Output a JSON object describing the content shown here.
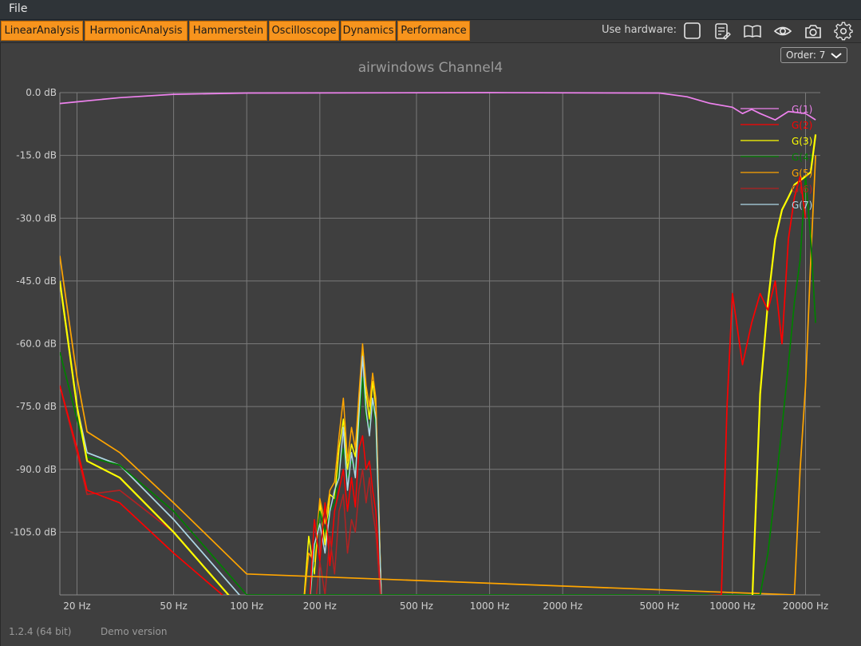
{
  "menu": {
    "file": "File"
  },
  "tabs": [
    {
      "label": "LinearAnalysis"
    },
    {
      "label": "HarmonicAnalysis"
    },
    {
      "label": "Hammerstein"
    },
    {
      "label": "Oscilloscope"
    },
    {
      "label": "Dynamics"
    },
    {
      "label": "Performance"
    }
  ],
  "toolbar": {
    "hardware_label": "Use hardware:",
    "icons": [
      "checkbox-icon",
      "notes-icon",
      "book-icon",
      "eye-icon",
      "camera-icon",
      "gear-icon"
    ]
  },
  "plot": {
    "title": "airwindows Channel4",
    "order_select": "Order: 7"
  },
  "footer": {
    "version": "1.2.4 (64 bit)",
    "demo": "Demo version"
  },
  "colors": {
    "accent": "#f7941d",
    "G1": "#ee82ee",
    "G2": "#ff0000",
    "G3": "#ffff00",
    "G4": "#008000",
    "G5": "#ffa500",
    "G6": "#b22222",
    "G7": "#add8e6"
  },
  "chart_data": {
    "type": "line",
    "title": "airwindows Channel4",
    "xlabel": "",
    "ylabel": "",
    "x_scale": "log",
    "xlim": [
      17,
      23000
    ],
    "ylim": [
      -120,
      0
    ],
    "x_ticks": [
      {
        "v": 20,
        "label": "20 Hz"
      },
      {
        "v": 50,
        "label": "50 Hz"
      },
      {
        "v": 100,
        "label": "100 Hz"
      },
      {
        "v": 200,
        "label": "200 Hz"
      },
      {
        "v": 500,
        "label": "500 Hz"
      },
      {
        "v": 1000,
        "label": "1000 Hz"
      },
      {
        "v": 2000,
        "label": "2000 Hz"
      },
      {
        "v": 5000,
        "label": "5000 Hz"
      },
      {
        "v": 10000,
        "label": "10000 Hz"
      },
      {
        "v": 20000,
        "label": "20000 Hz"
      }
    ],
    "y_ticks": [
      {
        "v": 0,
        "label": "0.0 dB"
      },
      {
        "v": -15,
        "label": "-15.0 dB"
      },
      {
        "v": -30,
        "label": "-30.0 dB"
      },
      {
        "v": -45,
        "label": "-45.0 dB"
      },
      {
        "v": -60,
        "label": "-60.0 dB"
      },
      {
        "v": -75,
        "label": "-75.0 dB"
      },
      {
        "v": -90,
        "label": "-90.0 dB"
      },
      {
        "v": -105,
        "label": "-105.0 dB"
      }
    ],
    "grid": true,
    "legend_position": "top-right",
    "series": [
      {
        "name": "G(1)",
        "color": "#ee82ee",
        "x": [
          17,
          20,
          30,
          50,
          100,
          1000,
          5000,
          6500,
          8000,
          10000,
          11000,
          12000,
          13000,
          15000,
          17000,
          20000,
          22000
        ],
        "y": [
          -2.6,
          -2.2,
          -1.2,
          -0.4,
          -0.1,
          0,
          -0.1,
          -1,
          -2.5,
          -3.5,
          -5,
          -4,
          -5,
          -6.5,
          -4.5,
          -5,
          -6.5
        ]
      },
      {
        "name": "G(2)",
        "color": "#ff0000",
        "x": [
          17,
          20,
          22,
          30,
          50,
          100,
          9000,
          9500,
          10000,
          11000,
          12000,
          13000,
          14000,
          15000,
          16000,
          17000,
          18000,
          19000,
          20000
        ],
        "y": [
          -70,
          -85,
          -95,
          -98,
          -110,
          -125,
          -120,
          -75,
          -48,
          -65,
          -55,
          -48,
          -52,
          -45,
          -60,
          -35,
          -25,
          -20,
          -30
        ]
      },
      {
        "name": "G(3)",
        "color": "#ffff00",
        "x": [
          17,
          20,
          22,
          30,
          50,
          100,
          12000,
          13000,
          14000,
          15000,
          16000,
          17000,
          18000,
          19000,
          20000,
          21000,
          22000
        ],
        "y": [
          -45,
          -75,
          -88,
          -92,
          -105,
          -125,
          -125,
          -72,
          -50,
          -35,
          -28,
          -25,
          -22,
          -21,
          -20,
          -19,
          -10
        ]
      },
      {
        "name": "G(4)",
        "color": "#008000",
        "x": [
          17,
          20,
          22,
          30,
          50,
          100,
          13000,
          14000,
          15000,
          16000,
          17000,
          18000,
          19000,
          20000,
          21000,
          22000
        ],
        "y": [
          -62,
          -78,
          -87,
          -89,
          -100,
          -120,
          -120,
          -110,
          -95,
          -80,
          -65,
          -50,
          -40,
          -20,
          -35,
          -55
        ]
      },
      {
        "name": "G(5)",
        "color": "#ffa500",
        "x": [
          17,
          20,
          22,
          30,
          50,
          100,
          18000,
          19000,
          20000,
          21000,
          22000
        ],
        "y": [
          -39,
          -68,
          -81,
          -86,
          -98,
          -115,
          -120,
          -90,
          -70,
          -40,
          -15
        ]
      },
      {
        "name": "G(6)",
        "color": "#b22222",
        "x": [
          17,
          20,
          22,
          30,
          50,
          100
        ],
        "y": [
          -70,
          -86,
          -96,
          -95,
          -105,
          -125
        ]
      },
      {
        "name": "G(7)",
        "color": "#add8e6",
        "x": [
          17,
          20,
          22,
          30,
          50,
          100
        ],
        "y": [
          -45,
          -75,
          -86,
          -89,
          -102,
          -122
        ]
      }
    ],
    "hump_series": [
      {
        "color": "#ffff00",
        "x": [
          170,
          180,
          190,
          200,
          210,
          220,
          230,
          240,
          250,
          260,
          270,
          280,
          290,
          300,
          310,
          320,
          330,
          340,
          360
        ],
        "y": [
          -125,
          -106,
          -115,
          -98,
          -108,
          -96,
          -97,
          -85,
          -78,
          -90,
          -84,
          -87,
          -75,
          -61,
          -72,
          -78,
          -69,
          -75,
          -125
        ]
      },
      {
        "color": "#ffa500",
        "x": [
          170,
          180,
          190,
          200,
          210,
          220,
          230,
          240,
          250,
          260,
          270,
          280,
          290,
          300,
          310,
          320,
          330,
          340,
          360
        ],
        "y": [
          -125,
          -110,
          -112,
          -97,
          -103,
          -95,
          -93,
          -82,
          -73,
          -88,
          -80,
          -85,
          -72,
          -60,
          -70,
          -75,
          -67,
          -73,
          -125
        ]
      },
      {
        "color": "#008000",
        "x": [
          180,
          190,
          200,
          210,
          220,
          230,
          240,
          250,
          260,
          270,
          280,
          290,
          300,
          310,
          320,
          330,
          340,
          360
        ],
        "y": [
          -125,
          -110,
          -100,
          -105,
          -100,
          -98,
          -90,
          -85,
          -92,
          -88,
          -90,
          -80,
          -68,
          -78,
          -80,
          -74,
          -80,
          -125
        ]
      },
      {
        "color": "#add8e6",
        "x": [
          180,
          190,
          200,
          210,
          220,
          230,
          240,
          250,
          260,
          270,
          280,
          290,
          300,
          310,
          320,
          330,
          340,
          360
        ],
        "y": [
          -125,
          -108,
          -103,
          -110,
          -100,
          -95,
          -92,
          -80,
          -95,
          -86,
          -92,
          -77,
          -63,
          -76,
          -82,
          -73,
          -78,
          -125
        ]
      },
      {
        "color": "#ff0000",
        "x": [
          180,
          190,
          200,
          210,
          220,
          230,
          240,
          250,
          260,
          270,
          280,
          290,
          300,
          310,
          320,
          330,
          340,
          360
        ],
        "y": [
          -125,
          -102,
          -112,
          -98,
          -113,
          -100,
          -95,
          -90,
          -100,
          -92,
          -99,
          -85,
          -82,
          -90,
          -88,
          -95,
          -100,
          -125
        ]
      },
      {
        "color": "#b22222",
        "x": [
          190,
          200,
          210,
          220,
          230,
          240,
          250,
          260,
          270,
          280,
          290,
          300,
          310,
          320,
          330,
          340,
          360
        ],
        "y": [
          -125,
          -112,
          -120,
          -106,
          -115,
          -100,
          -96,
          -110,
          -102,
          -105,
          -95,
          -90,
          -98,
          -92,
          -100,
          -105,
          -125
        ]
      }
    ]
  }
}
